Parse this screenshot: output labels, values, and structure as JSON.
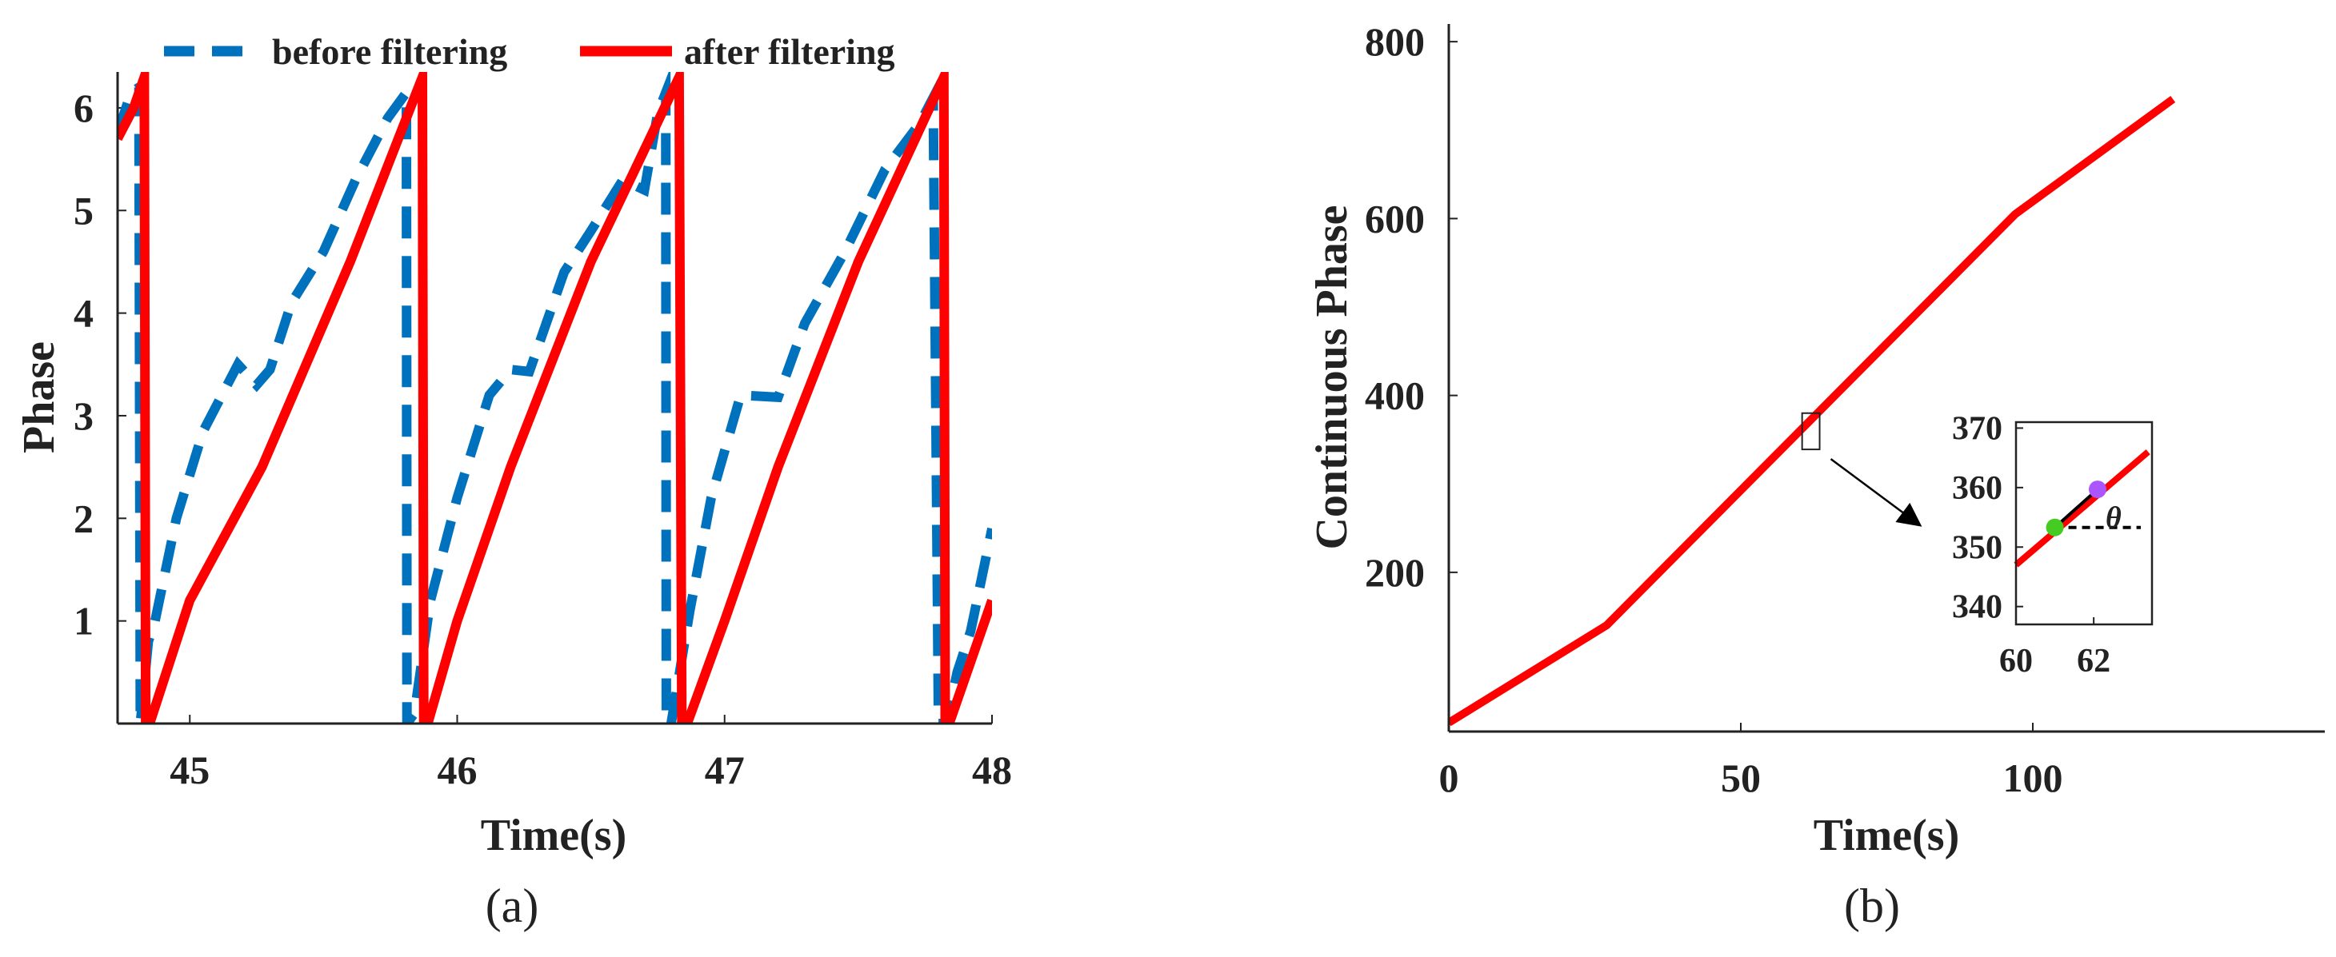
{
  "chart_data": [
    {
      "type": "line",
      "panel_label": "(a)",
      "xlabel": "Time(s)",
      "ylabel": "Phase",
      "xlim": [
        44.73,
        48.0
      ],
      "ylim": [
        0.0,
        6.35
      ],
      "xticks": [
        45,
        46,
        47,
        48
      ],
      "yticks": [
        1,
        2,
        3,
        4,
        5,
        6
      ],
      "legend_placement": "top-outside",
      "series": [
        {
          "name": "before filtering",
          "style": "dashed",
          "color": "#0072BD",
          "x": [
            44.73,
            44.78,
            44.81,
            44.815,
            44.845,
            44.87,
            44.95,
            45.05,
            45.18,
            45.25,
            45.3,
            45.38,
            45.5,
            45.62,
            45.74,
            45.81,
            45.812,
            45.84,
            45.9,
            46.0,
            46.12,
            46.2,
            46.27,
            46.4,
            46.5,
            46.62,
            46.7,
            46.75,
            46.78,
            46.782,
            46.8,
            46.87,
            46.95,
            47.06,
            47.2,
            47.3,
            47.45,
            47.6,
            47.73,
            47.78,
            47.8,
            47.83,
            47.87,
            47.92,
            48.0
          ],
          "y": [
            5.75,
            6.15,
            6.2,
            0.0,
            0.8,
            1.0,
            2.0,
            2.85,
            3.5,
            3.3,
            3.45,
            4.1,
            4.6,
            5.3,
            5.9,
            6.15,
            0.0,
            0.1,
            1.2,
            2.2,
            3.2,
            3.45,
            3.43,
            4.4,
            4.8,
            5.3,
            5.2,
            5.95,
            6.15,
            0.0,
            0.0,
            1.1,
            2.2,
            3.2,
            3.18,
            3.9,
            4.6,
            5.4,
            5.85,
            6.1,
            0.0,
            0.0,
            0.5,
            0.9,
            1.9
          ]
        },
        {
          "name": "after filtering",
          "style": "solid",
          "color": "#FF0000",
          "x": [
            44.73,
            44.79,
            44.83,
            44.835,
            44.85,
            45.0,
            45.27,
            45.6,
            45.87,
            45.875,
            45.89,
            46.0,
            46.2,
            46.5,
            46.83,
            46.84,
            46.86,
            47.0,
            47.2,
            47.5,
            47.82,
            47.825,
            47.84,
            48.0
          ],
          "y": [
            5.7,
            6.0,
            6.3,
            0.0,
            0.0,
            1.2,
            2.5,
            4.5,
            6.3,
            0.0,
            0.0,
            1.0,
            2.5,
            4.5,
            6.3,
            0.0,
            0.0,
            1.0,
            2.5,
            4.5,
            6.3,
            0.0,
            0.0,
            1.2
          ]
        }
      ]
    },
    {
      "type": "line",
      "panel_label": "(b)",
      "xlabel": "Time(s)",
      "ylabel": "Continuous Phase",
      "xlim": [
        0,
        150
      ],
      "ylim": [
        20,
        820
      ],
      "xticks": [
        0,
        50,
        100
      ],
      "yticks": [
        200,
        400,
        600,
        800
      ],
      "series": [
        {
          "color": "#FF0000",
          "x": [
            0,
            27,
            97,
            124
          ],
          "y": [
            30,
            140,
            605,
            735
          ]
        }
      ],
      "highlight_box": {
        "x": [
          60.5,
          63.5
        ],
        "y": [
          339,
          380
        ]
      },
      "inset": {
        "xlim": [
          60,
          63.5
        ],
        "ylim": [
          337,
          371
        ],
        "xticks": [
          60,
          62
        ],
        "yticks": [
          340,
          350,
          360,
          370
        ],
        "line_x": [
          60,
          63.4
        ],
        "line_y": [
          347,
          366
        ],
        "green_point": {
          "x": 61,
          "y": 353.3,
          "color": "#44CC22"
        },
        "purple_point": {
          "x": 62.1,
          "y": 359.7,
          "color": "#AA55FF"
        },
        "angle_label": "θ"
      }
    }
  ]
}
